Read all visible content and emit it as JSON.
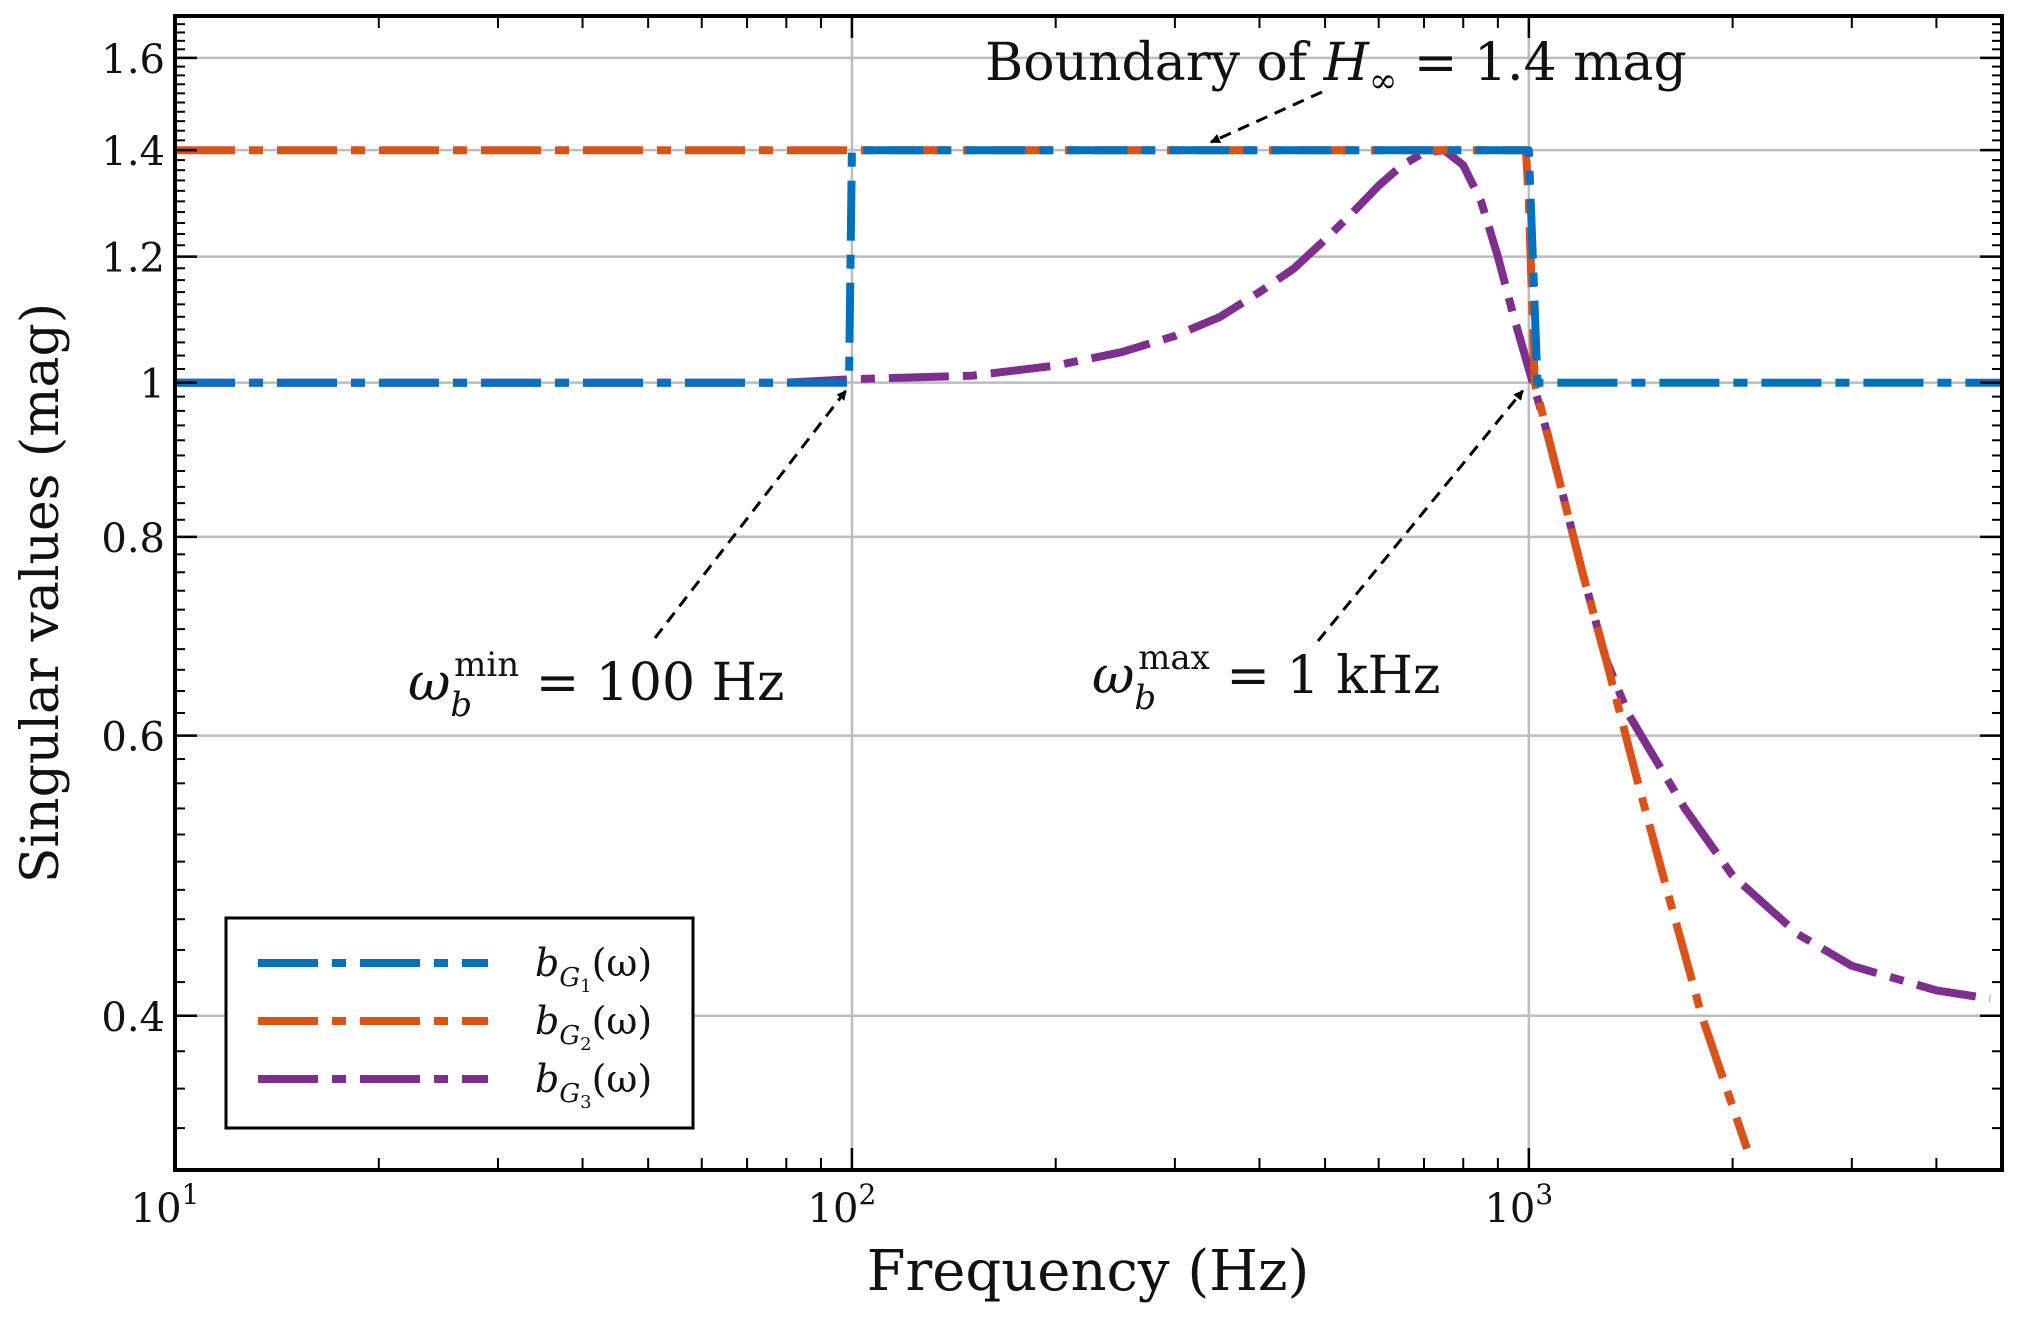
{
  "chart_data": {
    "type": "line",
    "xscale": "log",
    "yscale": "log",
    "xlabel": "Frequency (Hz)",
    "ylabel": "Singular values (mag)",
    "xlim": [
      10,
      5000
    ],
    "ylim": [
      0.32,
      1.7
    ],
    "xticks": [
      {
        "value": 10,
        "base": "10",
        "exp": "1"
      },
      {
        "value": 100,
        "base": "10",
        "exp": "2"
      },
      {
        "value": 1000,
        "base": "10",
        "exp": "3"
      }
    ],
    "yticks": [
      {
        "value": 0.4,
        "label": "0.4"
      },
      {
        "value": 0.6,
        "label": "0.6"
      },
      {
        "value": 0.8,
        "label": "0.8"
      },
      {
        "value": 1.0,
        "label": "1"
      },
      {
        "value": 1.2,
        "label": "1.2"
      },
      {
        "value": 1.4,
        "label": "1.4"
      },
      {
        "value": 1.6,
        "label": "1.6"
      }
    ],
    "grid": true,
    "legend_position": "bottom-left",
    "series": [
      {
        "name": "b_{G1}(ω)",
        "legend": {
          "sym": "b",
          "sub": "G",
          "subsub": "1",
          "arg": "(ω)"
        },
        "color": "#0072BD",
        "points": [
          [
            10,
            1.0
          ],
          [
            99,
            1.0
          ],
          [
            100,
            1.4
          ],
          [
            1000,
            1.4
          ],
          [
            1030,
            1.0
          ],
          [
            5000,
            1.0
          ]
        ]
      },
      {
        "name": "b_{G2}(ω)",
        "legend": {
          "sym": "b",
          "sub": "G",
          "subsub": "2",
          "arg": "(ω)"
        },
        "color": "#D95319",
        "points": [
          [
            10,
            1.4
          ],
          [
            990,
            1.4
          ],
          [
            1000,
            1.3
          ],
          [
            1020,
            1.0
          ],
          [
            1100,
            0.88
          ],
          [
            1200,
            0.76
          ],
          [
            1300,
            0.67
          ],
          [
            1450,
            0.56
          ],
          [
            1600,
            0.48
          ],
          [
            1800,
            0.4
          ],
          [
            2100,
            0.33
          ]
        ]
      },
      {
        "name": "b_{G3}(ω)",
        "legend": {
          "sym": "b",
          "sub": "G",
          "subsub": "3",
          "arg": "(ω)"
        },
        "color": "#7E2F8E",
        "points": [
          [
            10,
            1.0
          ],
          [
            80,
            1.0
          ],
          [
            100,
            1.005
          ],
          [
            150,
            1.01
          ],
          [
            200,
            1.025
          ],
          [
            250,
            1.045
          ],
          [
            300,
            1.07
          ],
          [
            350,
            1.1
          ],
          [
            400,
            1.14
          ],
          [
            450,
            1.18
          ],
          [
            500,
            1.23
          ],
          [
            550,
            1.28
          ],
          [
            600,
            1.33
          ],
          [
            650,
            1.37
          ],
          [
            700,
            1.395
          ],
          [
            750,
            1.4
          ],
          [
            800,
            1.37
          ],
          [
            850,
            1.3
          ],
          [
            900,
            1.2
          ],
          [
            950,
            1.1
          ],
          [
            1000,
            1.02
          ],
          [
            1050,
            0.95
          ],
          [
            1100,
            0.88
          ],
          [
            1200,
            0.76
          ],
          [
            1300,
            0.67
          ],
          [
            1400,
            0.62
          ],
          [
            1500,
            0.59
          ],
          [
            1700,
            0.54
          ],
          [
            2000,
            0.49
          ],
          [
            2500,
            0.45
          ],
          [
            3000,
            0.43
          ],
          [
            4000,
            0.415
          ],
          [
            4800,
            0.41
          ]
        ]
      }
    ],
    "annotations": [
      {
        "id": "boundary",
        "prefix": "Boundary of ",
        "sym": "H",
        "sub": "∞",
        "suffix": " = 1.4 mag",
        "target": [
          330,
          1.4
        ]
      },
      {
        "id": "wmin",
        "sym": "ω",
        "sub": "b",
        "sup": "min",
        "suffix": " = 100 Hz",
        "target": [
          100,
          1.0
        ],
        "text_anchor": [
          50,
          0.695
        ]
      },
      {
        "id": "wmax",
        "sym": "ω",
        "sub": "b",
        "sup": "max",
        "suffix": " = 1 kHz",
        "target": [
          1000,
          1.0
        ],
        "text_anchor": [
          520,
          0.695
        ]
      }
    ]
  }
}
